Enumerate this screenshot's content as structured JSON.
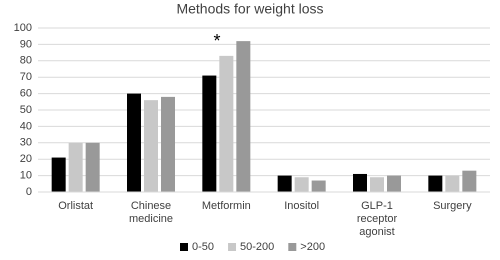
{
  "chart_data": {
    "type": "bar",
    "title": "Methods for weight loss",
    "categories": [
      "Orlistat",
      "Chinese medicine",
      "Metformin",
      "Inositol",
      "GLP-1 receptor agonist",
      "Surgery"
    ],
    "series": [
      {
        "name": "0-50",
        "color": "#000000",
        "values": [
          21,
          60,
          71,
          10,
          11,
          10
        ]
      },
      {
        "name": "50-200",
        "color": "#c8c8c8",
        "values": [
          30,
          56,
          83,
          9,
          9,
          10
        ]
      },
      {
        "name": ">200",
        "color": "#999999",
        "values": [
          30,
          58,
          92,
          7,
          10,
          13
        ]
      }
    ],
    "annotation": "*",
    "ylim": [
      0,
      100
    ],
    "yticks": [
      0,
      10,
      20,
      30,
      40,
      50,
      60,
      70,
      80,
      90,
      100
    ],
    "grid": true,
    "legend": "bottom"
  }
}
